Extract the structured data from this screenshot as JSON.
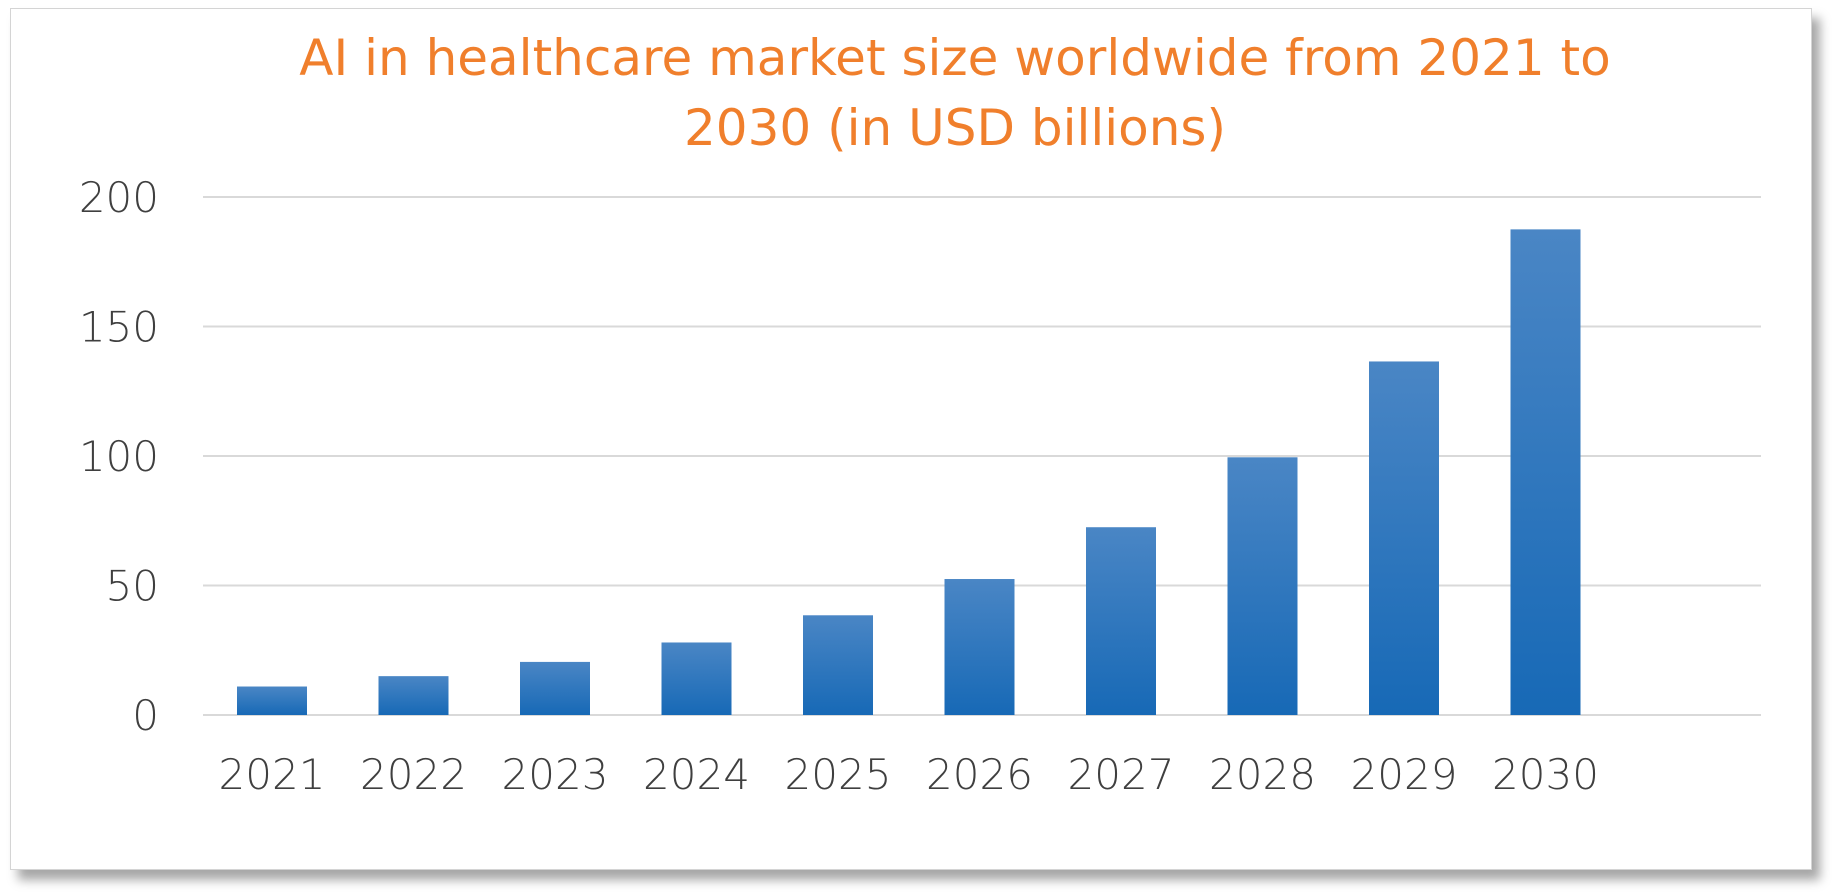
{
  "chart_data": {
    "type": "bar",
    "title_lines": [
      "AI in healthcare market size worldwide from 2021 to",
      "2030 (in USD billions)"
    ],
    "categories": [
      "2021",
      "2022",
      "2023",
      "2024",
      "2025",
      "2026",
      "2027",
      "2028",
      "2029",
      "2030"
    ],
    "values": [
      11,
      15,
      20.5,
      28,
      38.5,
      52.5,
      72.5,
      99.5,
      136.5,
      187.5
    ],
    "ylim": [
      0,
      200
    ],
    "yticks": [
      "0",
      "50",
      "100",
      "150",
      "200"
    ],
    "grid": true,
    "legend": "none",
    "colors": {
      "bar_top": "#4a86c5",
      "bar_bottom": "#1769b6",
      "title": "#f07f2c",
      "grid": "#d9d9d9",
      "tick_text": "#3f3f3f"
    }
  }
}
